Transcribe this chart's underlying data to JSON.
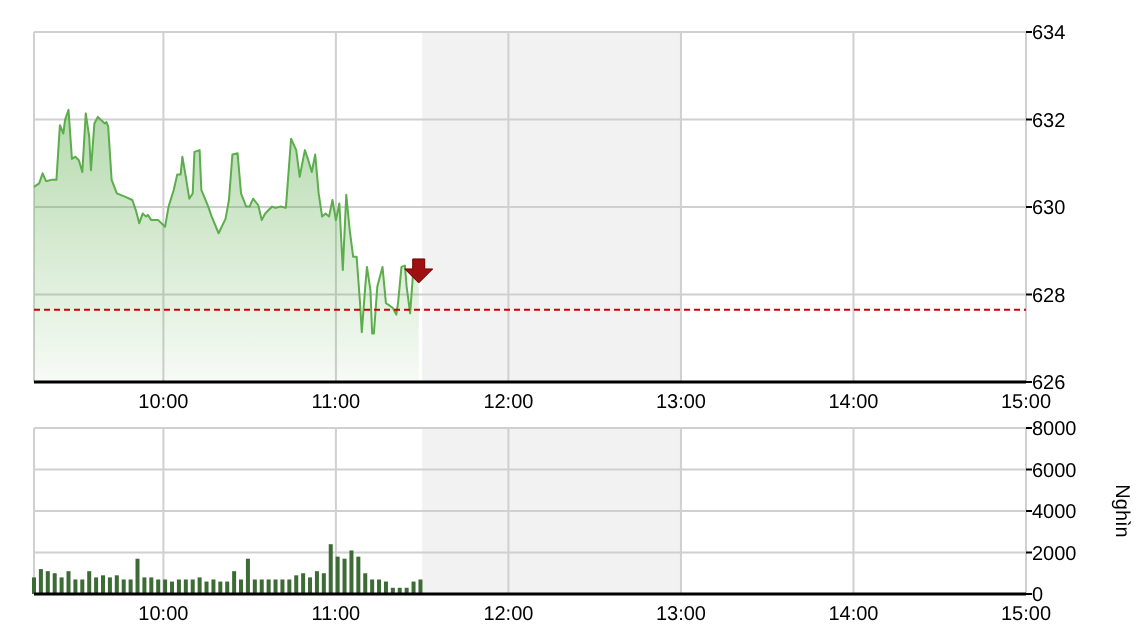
{
  "chart_data": [
    {
      "type": "area",
      "xlim": [
        9.25,
        15
      ],
      "ylim": [
        626,
        634
      ],
      "yticks": [
        626,
        628,
        630,
        632,
        634
      ],
      "xticks": [
        {
          "value": 10,
          "label": "10:00"
        },
        {
          "value": 11,
          "label": "11:00"
        },
        {
          "value": 12,
          "label": "12:00"
        },
        {
          "value": 13,
          "label": "13:00"
        },
        {
          "value": 14,
          "label": "14:00"
        },
        {
          "value": 15,
          "label": "15:00"
        }
      ],
      "grid": true,
      "ref_lines": [
        {
          "axis": "y",
          "value": 627.65,
          "color": "#cc0000",
          "line_style": "dashed"
        }
      ],
      "bands": [
        {
          "axis": "x",
          "from": 11.5,
          "to": 13,
          "color": "#f2f2f2"
        }
      ],
      "series": [
        {
          "color": "#5cad4c",
          "x": [
            9.25,
            9.28,
            9.3,
            9.32,
            9.35,
            9.38,
            9.4,
            9.42,
            9.43,
            9.45,
            9.47,
            9.49,
            9.51,
            9.53,
            9.55,
            9.57,
            9.58,
            9.6,
            9.62,
            9.66,
            9.67,
            9.68,
            9.7,
            9.73,
            9.78,
            9.82,
            9.84,
            9.86,
            9.88,
            9.9,
            9.91,
            9.93,
            9.97,
            10.01,
            10.03,
            10.06,
            10.08,
            10.1,
            10.11,
            10.13,
            10.15,
            10.17,
            10.18,
            10.21,
            10.22,
            10.26,
            10.28,
            10.32,
            10.36,
            10.38,
            10.4,
            10.43,
            10.45,
            10.48,
            10.5,
            10.52,
            10.55,
            10.57,
            10.59,
            10.61,
            10.63,
            10.65,
            10.68,
            10.71,
            10.74,
            10.77,
            10.79,
            10.82,
            10.84,
            10.86,
            10.88,
            10.9,
            10.92,
            10.94,
            10.96,
            10.98,
            11.0,
            11.02,
            11.04,
            11.06,
            11.08,
            11.1,
            11.12,
            11.14,
            11.15,
            11.17,
            11.18,
            11.2,
            11.21,
            11.22,
            11.24,
            11.27,
            11.29,
            11.31,
            11.33,
            11.35,
            11.36,
            11.38,
            11.4,
            11.41,
            11.43,
            11.45,
            11.48
          ],
          "values": [
            630.46,
            630.54,
            630.77,
            630.59,
            630.62,
            630.62,
            631.87,
            631.68,
            631.99,
            632.22,
            631.1,
            631.15,
            631.07,
            630.8,
            632.14,
            631.61,
            630.84,
            631.91,
            632.06,
            631.91,
            631.94,
            631.84,
            630.62,
            630.31,
            630.23,
            630.16,
            629.93,
            629.63,
            629.85,
            629.78,
            629.82,
            629.7,
            629.7,
            629.55,
            630.01,
            630.39,
            630.74,
            630.74,
            631.15,
            630.69,
            630.19,
            630.31,
            631.26,
            631.3,
            630.39,
            630.01,
            629.78,
            629.4,
            629.73,
            630.16,
            631.2,
            631.23,
            630.31,
            630.01,
            630.01,
            630.19,
            630.04,
            629.7,
            629.85,
            629.93,
            630.01,
            629.98,
            630.01,
            629.98,
            631.56,
            631.3,
            630.69,
            631.3,
            631.07,
            630.8,
            631.2,
            630.31,
            629.78,
            629.85,
            629.78,
            630.16,
            629.7,
            630.08,
            628.56,
            630.28,
            629.47,
            628.86,
            628.86,
            627.8,
            627.14,
            628.18,
            628.63,
            628.1,
            627.11,
            627.11,
            628.18,
            628.63,
            627.8,
            627.75,
            627.69,
            627.54,
            627.8,
            628.63,
            628.66,
            628.18,
            627.57,
            628.63,
            628.63
          ]
        }
      ]
    },
    {
      "type": "bar",
      "ylabel": "Nghìn",
      "xlim": [
        9.25,
        15
      ],
      "ylim": [
        0,
        8000
      ],
      "yticks": [
        0,
        2000,
        4000,
        6000,
        8000
      ],
      "xticks": [
        {
          "value": 10,
          "label": "10:00"
        },
        {
          "value": 11,
          "label": "11:00"
        },
        {
          "value": 12,
          "label": "12:00"
        },
        {
          "value": 13,
          "label": "13:00"
        },
        {
          "value": 14,
          "label": "14:00"
        },
        {
          "value": 15,
          "label": "15:00"
        }
      ],
      "grid": true,
      "bands": [
        {
          "axis": "x",
          "from": 11.5,
          "to": 13,
          "color": "#f2f2f2"
        }
      ],
      "series": [
        {
          "color": "#3d6b35",
          "x": [
            9.25,
            9.29,
            9.33,
            9.37,
            9.41,
            9.45,
            9.49,
            9.53,
            9.57,
            9.61,
            9.65,
            9.69,
            9.73,
            9.77,
            9.81,
            9.85,
            9.89,
            9.93,
            9.97,
            10.01,
            10.05,
            10.09,
            10.13,
            10.17,
            10.21,
            10.25,
            10.29,
            10.33,
            10.37,
            10.41,
            10.45,
            10.49,
            10.53,
            10.57,
            10.61,
            10.65,
            10.69,
            10.73,
            10.77,
            10.81,
            10.85,
            10.89,
            10.93,
            10.97,
            11.01,
            11.05,
            11.09,
            11.13,
            11.17,
            11.21,
            11.25,
            11.29,
            11.33,
            11.37,
            11.41,
            11.45,
            11.49
          ],
          "values": [
            800,
            1200,
            1100,
            1000,
            800,
            1100,
            700,
            700,
            1100,
            800,
            900,
            800,
            900,
            700,
            700,
            1700,
            800,
            800,
            700,
            700,
            600,
            700,
            700,
            700,
            800,
            600,
            700,
            600,
            600,
            1100,
            700,
            1700,
            700,
            700,
            700,
            700,
            700,
            700,
            900,
            1000,
            800,
            1100,
            1000,
            2400,
            1800,
            1700,
            2100,
            1800,
            1000,
            700,
            700,
            600,
            300,
            300,
            300,
            600,
            700
          ]
        }
      ]
    }
  ]
}
